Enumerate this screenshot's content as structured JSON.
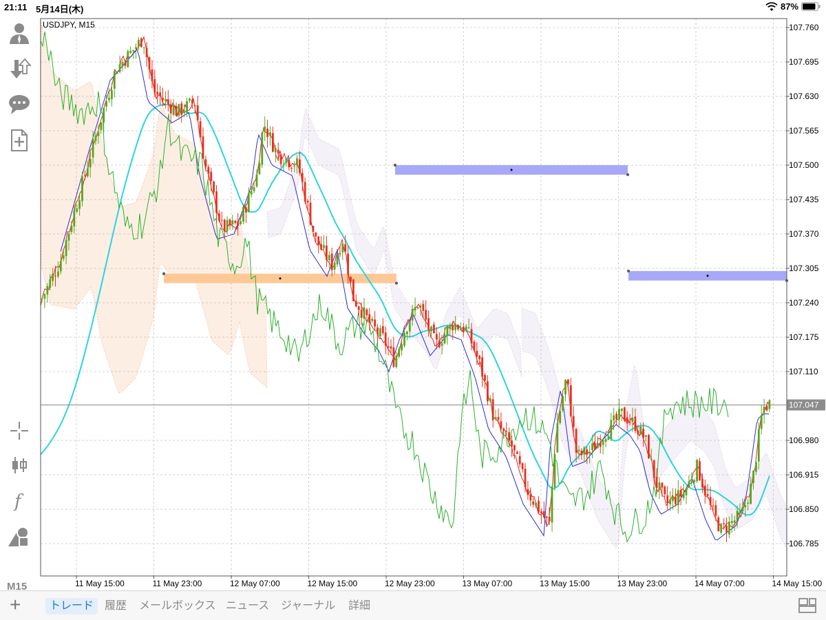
{
  "status_bar": {
    "time": "21:11",
    "date": "5月14日(木)",
    "battery": "87%"
  },
  "chart": {
    "title": "USDJPY, M15",
    "current_price": "107.047",
    "y_ticks": [
      "107.760",
      "107.695",
      "107.630",
      "107.565",
      "107.500",
      "107.435",
      "107.370",
      "107.305",
      "107.240",
      "107.175",
      "107.110",
      "106.980",
      "106.915",
      "106.850",
      "106.785"
    ],
    "x_ticks": [
      "11 May 15:00",
      "11 May 23:00",
      "12 May 07:00",
      "12 May 15:00",
      "12 May 23:00",
      "13 May 07:00",
      "13 May 15:00",
      "13 May 23:00",
      "14 May 07:00",
      "14 May 15:00"
    ],
    "colors": {
      "bull": "#5aa51e",
      "bear": "#e8311f",
      "ma": "#2ad4e0",
      "tenkan": "#e3221c",
      "kijun": "#2b2bd4",
      "chikou": "#2bb02b",
      "zone_blue": "#a8a8f8",
      "zone_orange": "#fcc996",
      "cloud_orange": "#f2a066",
      "cloud_purple": "#c9b4d8"
    }
  },
  "left_toolbar": {
    "icons": [
      "account-icon",
      "deposit-withdraw-icon",
      "chat-icon",
      "new-order-icon",
      "crosshair-icon",
      "candlestick-icon",
      "indicator-icon",
      "objects-icon"
    ],
    "timeframe": "M15"
  },
  "tabs": [
    "トレード",
    "履歴",
    "メールボックス",
    "ニュース",
    "ジャーナル",
    "詳細"
  ],
  "active_tab": 0
}
